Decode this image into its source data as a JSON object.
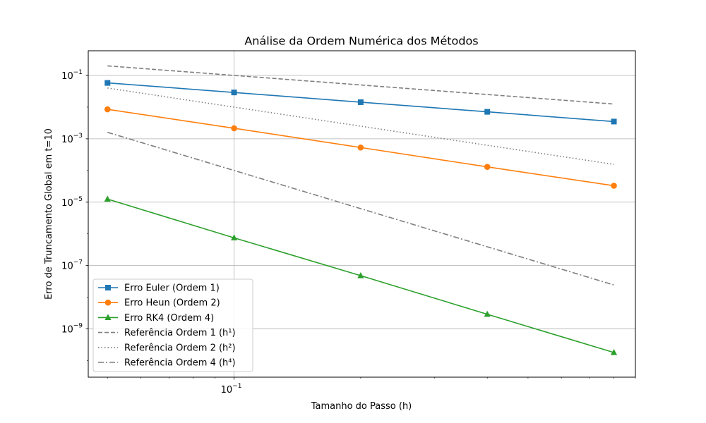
{
  "chart_data": {
    "type": "line",
    "title": "Análise da Ordem Numérica dos Métodos",
    "xlabel": "Tamanho do Passo (h)",
    "ylabel": "Erro de Truncamento Global em t=10",
    "xscale": "log",
    "yscale": "log",
    "xlim": [
      0.045,
      0.9
    ],
    "ylim": [
      3e-11,
      0.6
    ],
    "x_ticks": [
      {
        "value": 0.1,
        "base": "10",
        "exp": "−1"
      }
    ],
    "y_ticks": [
      {
        "value": 0.1,
        "base": "10",
        "exp": "−1"
      },
      {
        "value": 0.001,
        "base": "10",
        "exp": "−3"
      },
      {
        "value": 1e-05,
        "base": "10",
        "exp": "−5"
      },
      {
        "value": 1e-07,
        "base": "10",
        "exp": "−7"
      },
      {
        "value": 1e-09,
        "base": "10",
        "exp": "−9"
      }
    ],
    "grid": true,
    "legend_position": "lower-left",
    "series": [
      {
        "name": "Erro Euler (Ordem 1)",
        "color": "#1f77b4",
        "style": "solid",
        "marker": "square",
        "x": [
          0.05,
          0.1,
          0.2,
          0.4,
          0.8
        ],
        "y": [
          0.058,
          0.029,
          0.0143,
          0.0071,
          0.0035
        ]
      },
      {
        "name": "Erro Heun (Ordem 2)",
        "color": "#ff7f0e",
        "style": "solid",
        "marker": "circle",
        "x": [
          0.05,
          0.1,
          0.2,
          0.4,
          0.8
        ],
        "y": [
          0.0085,
          0.00215,
          0.00053,
          0.00013,
          3.3e-05
        ]
      },
      {
        "name": "Erro RK4 (Ordem 4)",
        "color": "#2ca02c",
        "style": "solid",
        "marker": "triangle",
        "x": [
          0.05,
          0.1,
          0.2,
          0.4,
          0.8
        ],
        "y": [
          1.25e-05,
          7.5e-07,
          4.8e-08,
          2.9e-09,
          1.8e-10
        ]
      },
      {
        "name": "Referência Ordem 1 (h¹)",
        "color": "#7f7f7f",
        "style": "dashed",
        "marker": "none",
        "x": [
          0.05,
          0.8
        ],
        "y": [
          0.2,
          0.0125
        ]
      },
      {
        "name": "Referência Ordem 2 (h²)",
        "color": "#7f7f7f",
        "style": "dotted",
        "marker": "none",
        "x": [
          0.05,
          0.8
        ],
        "y": [
          0.04,
          0.000156
        ]
      },
      {
        "name": "Referência Ordem 4 (h⁴)",
        "color": "#7f7f7f",
        "style": "dashdot",
        "marker": "none",
        "x": [
          0.05,
          0.8
        ],
        "y": [
          0.0016,
          2.44e-08
        ]
      }
    ]
  }
}
